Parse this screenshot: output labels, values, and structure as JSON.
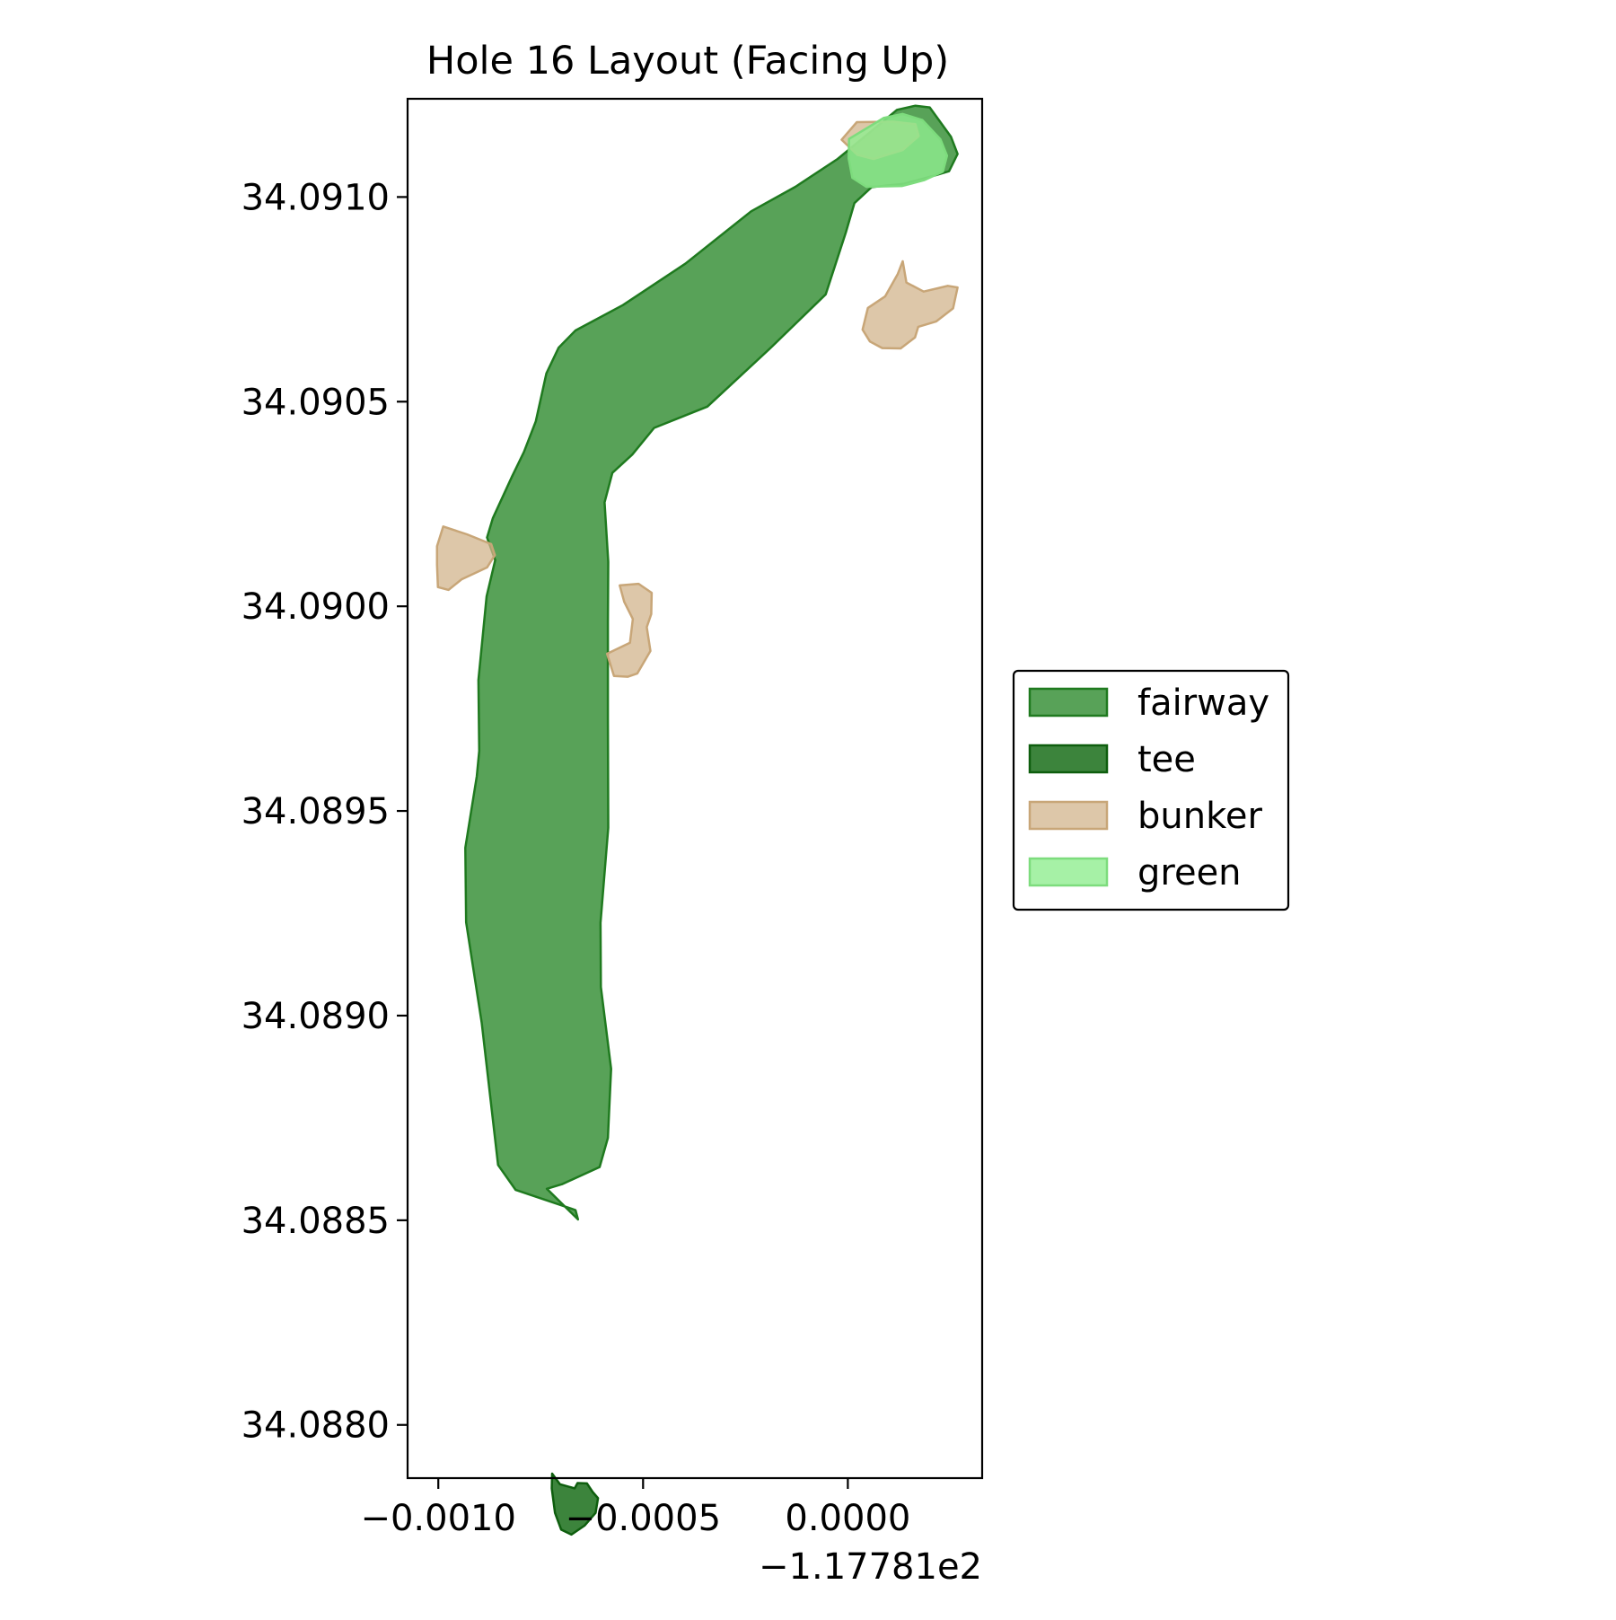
{
  "title": "Hole 16 Layout (Facing Up)",
  "axes": {
    "x_ticks": [
      {
        "value": -0.001,
        "label": "−0.0010"
      },
      {
        "value": -0.0005,
        "label": "−0.0005"
      },
      {
        "value": 0.0,
        "label": "0.0000"
      }
    ],
    "x_offset_label": "−1.17781e2",
    "y_ticks": [
      {
        "value": 34.088,
        "label": "34.0880"
      },
      {
        "value": 34.0885,
        "label": "34.0885"
      },
      {
        "value": 34.089,
        "label": "34.0890"
      },
      {
        "value": 34.0895,
        "label": "34.0895"
      },
      {
        "value": 34.09,
        "label": "34.0900"
      },
      {
        "value": 34.0905,
        "label": "34.0905"
      },
      {
        "value": 34.091,
        "label": "34.0910"
      }
    ],
    "xlim": [
      -0.001075,
      0.000328
    ],
    "ylim": [
      34.08787,
      34.09124
    ]
  },
  "legend": {
    "placement": "right",
    "items": [
      {
        "label": "fairway",
        "fill": "#2e8b2e",
        "stroke": "#1f7a1f",
        "opacity": 0.8
      },
      {
        "label": "tee",
        "fill": "#1a6e1a",
        "stroke": "#0e5e0e",
        "opacity": 0.85
      },
      {
        "label": "bunker",
        "fill": "#d2b48c",
        "stroke": "#c8a678",
        "opacity": 0.75
      },
      {
        "label": "green",
        "fill": "#90ee90",
        "stroke": "#7ddc7d",
        "opacity": 0.8
      }
    ]
  },
  "chart_data": {
    "type": "map",
    "title": "Hole 16 Layout (Facing Up)",
    "x_offset": -117.781,
    "grid": false,
    "legend_placement": "right",
    "features": [
      {
        "type": "fairway",
        "coords": [
          [
            -0.000735,
            34.088577
          ],
          [
            -0.000659,
            34.088502
          ],
          [
            -0.000665,
            34.088525
          ],
          [
            -0.000811,
            34.088574
          ],
          [
            -0.000854,
            34.088635
          ],
          [
            -0.000894,
            34.088982
          ],
          [
            -0.000932,
            34.089228
          ],
          [
            -0.000934,
            34.08941
          ],
          [
            -0.000906,
            34.089585
          ],
          [
            -0.0009,
            34.089647
          ],
          [
            -0.000902,
            34.08982
          ],
          [
            -0.000882,
            34.090024
          ],
          [
            -0.000861,
            34.090113
          ],
          [
            -0.000881,
            34.090168
          ],
          [
            -0.000867,
            34.090215
          ],
          [
            -0.00082,
            34.090317
          ],
          [
            -0.000791,
            34.090377
          ],
          [
            -0.000762,
            34.090452
          ],
          [
            -0.000736,
            34.090569
          ],
          [
            -0.000706,
            34.090632
          ],
          [
            -0.000665,
            34.090674
          ],
          [
            -0.000549,
            34.090736
          ],
          [
            -0.000397,
            34.090837
          ],
          [
            -0.000236,
            34.090965
          ],
          [
            -0.000128,
            34.091025
          ],
          [
            -2.5e-05,
            34.091093
          ],
          [
            7e-05,
            34.091171
          ],
          [
            0.00012,
            34.091213
          ],
          [
            0.000165,
            34.091223
          ],
          [
            0.0002,
            34.091219
          ],
          [
            0.000252,
            34.091147
          ],
          [
            0.000268,
            34.091105
          ],
          [
            0.000247,
            34.091063
          ],
          [
            0.000214,
            34.091053
          ],
          [
            0.000135,
            34.091032
          ],
          [
            5.8e-05,
            34.091024
          ],
          [
            1.6e-05,
            34.090985
          ],
          [
            -5e-06,
            34.090913
          ],
          [
            -5.4e-05,
            34.090762
          ],
          [
            -0.00019,
            34.09063
          ],
          [
            -0.000343,
            34.090488
          ],
          [
            -0.000473,
            34.090436
          ],
          [
            -0.000526,
            34.090371
          ],
          [
            -0.000575,
            34.090326
          ],
          [
            -0.000594,
            34.090254
          ],
          [
            -0.000585,
            34.090109
          ],
          [
            -0.000586,
            34.08996
          ],
          [
            -0.000586,
            34.089729
          ],
          [
            -0.000585,
            34.089459
          ],
          [
            -0.000604,
            34.089227
          ],
          [
            -0.000603,
            34.08907
          ],
          [
            -0.000578,
            34.08887
          ],
          [
            -0.000586,
            34.088701
          ],
          [
            -0.000606,
            34.08863
          ],
          [
            -0.000698,
            34.088588
          ]
        ]
      },
      {
        "type": "green",
        "coords": [
          [
            3e-06,
            34.091142
          ],
          [
            8.7e-05,
            34.091193
          ],
          [
            0.000134,
            34.091203
          ],
          [
            0.000182,
            34.091188
          ],
          [
            0.000226,
            34.091141
          ],
          [
            0.000242,
            34.091101
          ],
          [
            0.000232,
            34.091062
          ],
          [
            0.000186,
            34.091041
          ],
          [
            0.000133,
            34.091027
          ],
          [
            4.5e-05,
            34.091025
          ],
          [
            1.1e-05,
            34.091047
          ],
          [
            2e-06,
            34.091094
          ]
        ]
      },
      {
        "type": "bunker",
        "coords": [
          [
            -1.5e-05,
            34.09114
          ],
          [
            2.2e-05,
            34.091183
          ],
          [
            0.000111,
            34.091184
          ],
          [
            0.000165,
            34.091178
          ],
          [
            0.000173,
            34.091149
          ],
          [
            0.000134,
            34.091115
          ],
          [
            6.3e-05,
            34.091093
          ],
          [
            2.3e-05,
            34.091103
          ]
        ]
      },
      {
        "type": "bunker",
        "coords": [
          [
            0.000134,
            34.090843
          ],
          [
            0.000143,
            34.090791
          ],
          [
            0.000185,
            34.090769
          ],
          [
            0.000223,
            34.090778
          ],
          [
            0.000244,
            34.090783
          ],
          [
            0.000268,
            34.090779
          ],
          [
            0.000257,
            34.090728
          ],
          [
            0.000216,
            34.090696
          ],
          [
            0.000172,
            34.090683
          ],
          [
            0.000164,
            34.090657
          ],
          [
            0.000129,
            34.09063
          ],
          [
            8.4e-05,
            34.090631
          ],
          [
            5.4e-05,
            34.090647
          ],
          [
            3.6e-05,
            34.090676
          ],
          [
            4.9e-05,
            34.090729
          ],
          [
            9.1e-05,
            34.090757
          ],
          [
            0.000122,
            34.090812
          ]
        ]
      },
      {
        "type": "bunker",
        "coords": [
          [
            -0.001003,
            34.090147
          ],
          [
            -0.000988,
            34.090195
          ],
          [
            -0.00093,
            34.090176
          ],
          [
            -0.000871,
            34.090152
          ],
          [
            -0.000862,
            34.090125
          ],
          [
            -0.000881,
            34.090095
          ],
          [
            -0.000943,
            34.090066
          ],
          [
            -0.000975,
            34.09004
          ],
          [
            -0.001001,
            34.090047
          ],
          [
            -0.001003,
            34.090101
          ]
        ]
      },
      {
        "type": "bunker",
        "coords": [
          [
            -0.000557,
            34.090051
          ],
          [
            -0.000511,
            34.090055
          ],
          [
            -0.000479,
            34.090033
          ],
          [
            -0.00048,
            34.089981
          ],
          [
            -0.000491,
            34.089949
          ],
          [
            -0.000482,
            34.089891
          ],
          [
            -0.000514,
            34.089836
          ],
          [
            -0.000537,
            34.089828
          ],
          [
            -0.000571,
            34.08983
          ],
          [
            -0.000588,
            34.089884
          ],
          [
            -0.000532,
            34.089911
          ],
          [
            -0.000525,
            34.089969
          ],
          [
            -0.000546,
            34.090011
          ]
        ]
      },
      {
        "type": "tee",
        "coords": [
          [
            -0.000722,
            34.087881
          ],
          [
            -0.000703,
            34.087855
          ],
          [
            -0.000667,
            34.087845
          ],
          [
            -0.00066,
            34.087858
          ],
          [
            -0.000637,
            34.087857
          ],
          [
            -0.000623,
            34.087836
          ],
          [
            -0.00061,
            34.087821
          ],
          [
            -0.000616,
            34.087785
          ],
          [
            -0.000643,
            34.087754
          ],
          [
            -0.000675,
            34.087732
          ],
          [
            -0.0007,
            34.087744
          ],
          [
            -0.000715,
            34.087785
          ],
          [
            -0.000723,
            34.087845
          ]
        ]
      }
    ]
  }
}
